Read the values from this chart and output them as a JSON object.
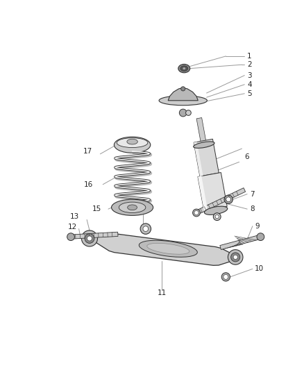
{
  "bg_color": "#ffffff",
  "line_color": "#333333",
  "leader_color": "#999999",
  "text_color": "#222222",
  "part_fill": "#d8d8d8",
  "part_edge": "#555555",
  "label_fs": 7.5
}
